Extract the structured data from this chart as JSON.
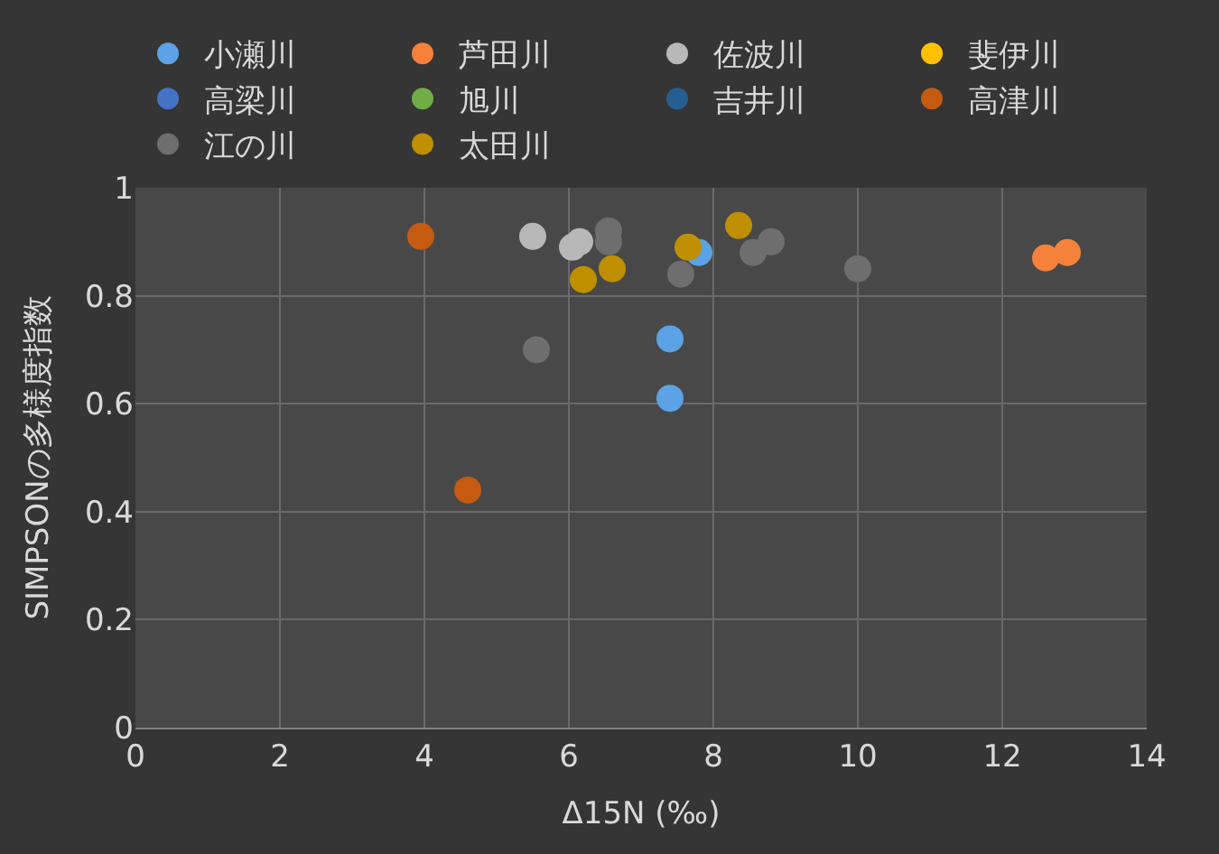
{
  "chart_data": {
    "type": "scatter",
    "xlabel": "Δ15N (‰)",
    "ylabel": "SIMPSONの多様度指数",
    "xlim": [
      0,
      14
    ],
    "xticks": [
      0,
      2,
      4,
      6,
      8,
      10,
      12,
      14
    ],
    "ylim": [
      0,
      1
    ],
    "yticks": [
      0,
      0.2,
      0.4,
      0.6,
      0.8,
      1
    ],
    "grid": true,
    "legend": "top",
    "marker": "circle",
    "series": [
      {
        "name": "小瀬川",
        "color": "#5ba3e6",
        "x": [
          7.4,
          7.4,
          7.8
        ],
        "values": [
          0.72,
          0.61,
          0.88
        ]
      },
      {
        "name": "芦田川",
        "color": "#f5813a",
        "x": [
          12.6,
          12.9
        ],
        "values": [
          0.87,
          0.88
        ]
      },
      {
        "name": "佐波川",
        "color": "#b8b8b8",
        "x": [
          5.5,
          6.05,
          6.15
        ],
        "values": [
          0.91,
          0.89,
          0.9
        ]
      },
      {
        "name": "斐伊川",
        "color": "#ffc000"
      },
      {
        "name": "高梁川",
        "color": "#4472c4"
      },
      {
        "name": "旭川",
        "color": "#70ad47"
      },
      {
        "name": "吉井川",
        "color": "#255e91"
      },
      {
        "name": "高津川",
        "color": "#c55a11",
        "x": [
          3.95,
          4.6
        ],
        "values": [
          0.91,
          0.44
        ]
      },
      {
        "name": "江の川",
        "color": "#6e6e6e",
        "x": [
          5.55,
          6.55,
          6.55,
          7.55,
          8.55,
          8.8,
          10.0
        ],
        "values": [
          0.7,
          0.92,
          0.9,
          0.84,
          0.88,
          0.9,
          0.85
        ]
      },
      {
        "name": "太田川",
        "color": "#bf8f00",
        "x": [
          6.2,
          6.6,
          7.65,
          8.35
        ],
        "values": [
          0.83,
          0.85,
          0.89,
          0.93
        ]
      }
    ]
  }
}
